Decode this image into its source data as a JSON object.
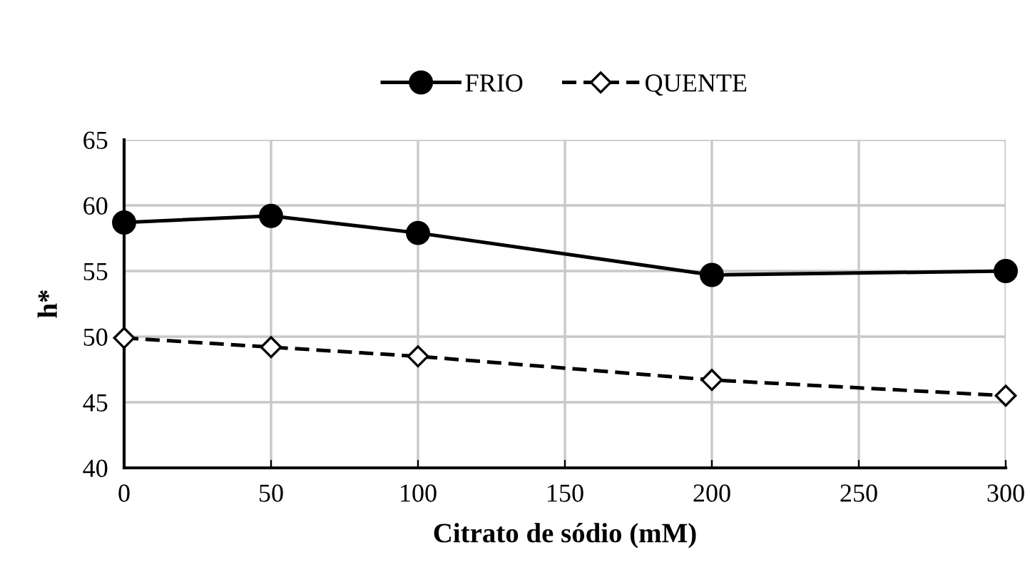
{
  "chart_data": {
    "type": "line",
    "xlabel": "Citrato de sódio (mM)",
    "ylabel": "h*",
    "x": [
      0,
      50,
      100,
      200,
      300
    ],
    "series": [
      {
        "name": "FRIO",
        "color": "#000000",
        "values": [
          58.7,
          59.2,
          57.9,
          54.7,
          55.0
        ],
        "marker": "circle",
        "line_style": "solid"
      },
      {
        "name": "QUENTE",
        "color": "#000000",
        "values": [
          49.9,
          49.2,
          48.5,
          46.7,
          45.5
        ],
        "marker": "diamond",
        "line_style": "dashed"
      }
    ],
    "xlim": [
      0,
      300
    ],
    "xticks": [
      0,
      50,
      100,
      150,
      200,
      250,
      300
    ],
    "ylim": [
      40,
      65
    ],
    "yticks": [
      40,
      45,
      50,
      55,
      60,
      65
    ],
    "grid": true,
    "legend": "top"
  }
}
